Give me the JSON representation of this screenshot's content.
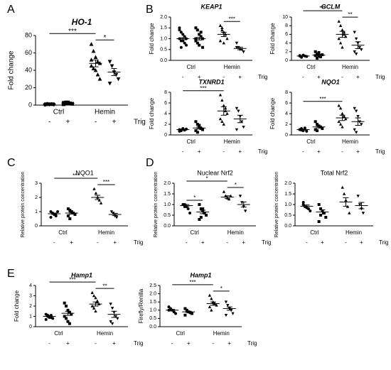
{
  "chart_data": [
    {
      "type": "dot",
      "panel": "A",
      "title": "HO-1",
      "italic": true,
      "ylabel": "Fold change",
      "groups": [
        "Ctrl",
        "Hemin"
      ],
      "categories": [
        "-",
        "+",
        "-",
        "+"
      ],
      "treatment": "Trig",
      "markers": [
        "circle",
        "square",
        "triangle",
        "triangle-down"
      ],
      "color": "#000000",
      "ylim": [
        0,
        80
      ],
      "yticks": [
        0,
        20,
        40,
        60,
        80
      ],
      "data": [
        {
          "mean": 1,
          "sem": 0.2,
          "points": [
            0.5,
            1,
            1,
            1.2,
            0.8,
            1,
            1.5,
            0.9,
            1.1,
            1
          ]
        },
        {
          "mean": 2,
          "sem": 0.3,
          "points": [
            1,
            2,
            3,
            2,
            1.5,
            2.5,
            3,
            1.8
          ]
        },
        {
          "mean": 48,
          "sem": 4,
          "points": [
            70,
            62,
            55,
            50,
            48,
            45,
            42,
            40,
            35,
            30,
            52
          ]
        },
        {
          "mean": 38,
          "sem": 4,
          "points": [
            50,
            45,
            38,
            35,
            30,
            25
          ]
        }
      ],
      "significance": [
        {
          "pair": [
            0,
            2
          ],
          "label": "***"
        },
        {
          "pair": [
            2,
            3
          ],
          "label": "*"
        }
      ]
    },
    {
      "type": "dot",
      "panel": "B",
      "title": "KEAP1",
      "italic": true,
      "ylabel": "Fold change",
      "groups": [
        "Ctrl",
        "Hemin"
      ],
      "categories": [
        "-",
        "+",
        "-",
        "+"
      ],
      "treatment": "Trig",
      "markers": [
        "circle",
        "square",
        "triangle",
        "triangle-down"
      ],
      "color": "#000000",
      "ylim": [
        0,
        2
      ],
      "yticks": [
        {
          "value": 0,
          "label": "0.0"
        },
        0.5,
        {
          "value": 1,
          "label": "1.0"
        },
        1.5,
        {
          "value": 2,
          "label": "2.0"
        }
      ],
      "data": [
        {
          "mean": 1.0,
          "sem": 0.05,
          "points": [
            1.5,
            1.3,
            1.2,
            1.1,
            1.0,
            1.0,
            0.9,
            0.9,
            0.8,
            0.7,
            1.4,
            0.6
          ]
        },
        {
          "mean": 1.0,
          "sem": 0.06,
          "points": [
            1.5,
            1.4,
            1.2,
            1.1,
            1.0,
            0.9,
            0.8,
            0.7,
            1.3,
            0.6,
            1.0
          ]
        },
        {
          "mean": 1.2,
          "sem": 0.1,
          "points": [
            1.6,
            1.5,
            1.3,
            1.2,
            1.0,
            0.9,
            1.4,
            0.8
          ]
        },
        {
          "mean": 0.55,
          "sem": 0.06,
          "points": [
            0.8,
            0.6,
            0.5,
            0.5,
            0.4,
            0.6
          ]
        }
      ],
      "significance": [
        {
          "pair": [
            2,
            3
          ],
          "label": "***"
        }
      ]
    },
    {
      "type": "dot",
      "title": "GCLM",
      "italic": true,
      "ylabel": "Fold change",
      "groups": [
        "Ctrl",
        "Hemin"
      ],
      "categories": [
        "-",
        "+",
        "-",
        "+"
      ],
      "treatment": "Trig",
      "markers": [
        "circle",
        "square",
        "triangle",
        "triangle-down"
      ],
      "color": "#000000",
      "ylim": [
        0,
        10
      ],
      "yticks": [
        0,
        2,
        4,
        6,
        8,
        10
      ],
      "data": [
        {
          "mean": 1,
          "sem": 0.1,
          "points": [
            1,
            0.8,
            1.2,
            1,
            0.9,
            1.1,
            0.7
          ]
        },
        {
          "mean": 1.2,
          "sem": 0.2,
          "points": [
            2,
            1.5,
            1,
            0.8,
            1.3,
            1.1,
            0.5,
            1.8
          ]
        },
        {
          "mean": 6,
          "sem": 0.7,
          "points": [
            9,
            8,
            7,
            6,
            5.5,
            5,
            4,
            3,
            6.5
          ]
        },
        {
          "mean": 3.5,
          "sem": 0.8,
          "points": [
            6.5,
            5,
            4,
            3,
            2.5,
            2,
            1.5
          ]
        }
      ],
      "significance": [
        {
          "pair": [
            0,
            2
          ],
          "label": "***"
        },
        {
          "pair": [
            2,
            3
          ],
          "label": "**"
        }
      ]
    },
    {
      "type": "dot",
      "title": "TXNRD1",
      "italic": true,
      "ylabel": "Fold change",
      "groups": [
        "Ctrl",
        "Hemin"
      ],
      "categories": [
        "-",
        "+",
        "-",
        "+"
      ],
      "treatment": "Trig",
      "markers": [
        "circle",
        "square",
        "triangle",
        "triangle-down"
      ],
      "color": "#000000",
      "ylim": [
        0,
        8
      ],
      "yticks": [
        0,
        2,
        4,
        6,
        8
      ],
      "data": [
        {
          "mean": 1,
          "sem": 0.1,
          "points": [
            1,
            0.8,
            1.2,
            0.9,
            1.1,
            0.7
          ]
        },
        {
          "mean": 1.3,
          "sem": 0.2,
          "points": [
            2.5,
            2,
            1.5,
            1.2,
            1,
            0.8,
            0.5,
            1.8
          ]
        },
        {
          "mean": 4.5,
          "sem": 0.8,
          "points": [
            7.5,
            6.5,
            5.5,
            5,
            4,
            3,
            2.5,
            2,
            4.5
          ]
        },
        {
          "mean": 3,
          "sem": 0.7,
          "points": [
            5,
            4.5,
            3.5,
            2.5,
            1.5,
            1
          ]
        }
      ],
      "significance": [
        {
          "pair": [
            0,
            2
          ],
          "label": "***"
        }
      ]
    },
    {
      "type": "dot",
      "title": "NQO1",
      "italic": true,
      "ylabel": "Fold change",
      "groups": [
        "Ctrl",
        "Hemin"
      ],
      "categories": [
        "-",
        "+",
        "-",
        "+"
      ],
      "treatment": "Trig",
      "markers": [
        "circle",
        "square",
        "triangle",
        "triangle-down"
      ],
      "color": "#000000",
      "ylim": [
        0,
        8
      ],
      "yticks": [
        0,
        2,
        4,
        6,
        8
      ],
      "data": [
        {
          "mean": 1,
          "sem": 0.1,
          "points": [
            1,
            1.2,
            0.8,
            1.3,
            0.7,
            1,
            0.9
          ]
        },
        {
          "mean": 1.5,
          "sem": 0.2,
          "points": [
            2.5,
            2,
            1.7,
            1.5,
            1.2,
            1,
            0.8
          ]
        },
        {
          "mean": 3.2,
          "sem": 0.5,
          "points": [
            5.5,
            5,
            4,
            3.5,
            3,
            2.5,
            2,
            1.5
          ]
        },
        {
          "mean": 2.5,
          "sem": 0.7,
          "points": [
            5,
            4.5,
            3.5,
            2.5,
            2,
            1,
            0.5
          ]
        }
      ],
      "significance": [
        {
          "pair": [
            0,
            2
          ],
          "label": "***"
        }
      ]
    },
    {
      "type": "dot",
      "panel": "C",
      "title": "NQO1",
      "italic": false,
      "ylabel": "Relative protein concentration",
      "groups": [
        "Ctrl",
        "Hemin"
      ],
      "categories": [
        "-",
        "+",
        "-",
        "+"
      ],
      "treatment": "Trig",
      "markers": [
        "circle",
        "square",
        "triangle",
        "triangle-down"
      ],
      "color": "#000000",
      "ylim": [
        0,
        3
      ],
      "yticks": [
        0,
        1,
        2,
        3
      ],
      "data": [
        {
          "mean": 0.85,
          "sem": 0.05,
          "points": [
            1.0,
            0.9,
            0.8,
            0.7,
            1.0,
            0.6,
            0.9,
            0.8
          ]
        },
        {
          "mean": 0.9,
          "sem": 0.07,
          "points": [
            1.2,
            1.1,
            1.0,
            0.9,
            0.8,
            0.7,
            0.5,
            1.0,
            0.9
          ]
        },
        {
          "mean": 2.0,
          "sem": 0.15,
          "points": [
            2.6,
            2.3,
            2.0,
            1.8,
            1.6
          ]
        },
        {
          "mean": 0.8,
          "sem": 0.08,
          "points": [
            1.0,
            0.9,
            0.7,
            0.6
          ]
        }
      ],
      "significance": [
        {
          "pair": [
            0,
            2
          ],
          "label": "***"
        },
        {
          "pair": [
            2,
            3
          ],
          "label": "***"
        }
      ]
    },
    {
      "type": "dot",
      "panel": "D",
      "title": "Nuclear Nrf2",
      "italic": false,
      "ylabel": "Relative protein concentration",
      "groups": [
        "Ctrl",
        "Hemin"
      ],
      "categories": [
        "-",
        "+",
        "-",
        "+"
      ],
      "treatment": "Trig",
      "markers": [
        "circle",
        "square",
        "triangle",
        "triangle-down"
      ],
      "color": "#000000",
      "ylim": [
        0,
        2
      ],
      "yticks": [
        {
          "value": 0,
          "label": "0.0"
        },
        0.5,
        {
          "value": 1,
          "label": "1.0"
        },
        1.5,
        {
          "value": 2,
          "label": "2.0"
        }
      ],
      "data": [
        {
          "mean": 0.95,
          "sem": 0.05,
          "points": [
            1.0,
            1.0,
            0.9,
            0.8,
            0.6,
            1.0,
            0.9
          ]
        },
        {
          "mean": 0.65,
          "sem": 0.08,
          "points": [
            1.0,
            0.8,
            0.7,
            0.6,
            0.5,
            0.3,
            0.4,
            0.8
          ]
        },
        {
          "mean": 1.35,
          "sem": 0.06,
          "points": [
            1.6,
            1.4,
            1.3,
            1.25,
            1.4
          ]
        },
        {
          "mean": 1.0,
          "sem": 0.12,
          "points": [
            1.4,
            1.1,
            0.9,
            0.7
          ]
        }
      ],
      "significance": [
        {
          "pair": [
            0,
            1
          ],
          "label": "*"
        },
        {
          "pair": [
            2,
            3
          ],
          "label": "*"
        },
        {
          "pair": [
            0,
            2
          ],
          "label": "*"
        }
      ]
    },
    {
      "type": "dot",
      "title": "Total Nrf2",
      "italic": false,
      "ylabel": "Relative protein concentration",
      "groups": [
        "Ctrl",
        "Hemin"
      ],
      "categories": [
        "-",
        "+",
        "-",
        "+"
      ],
      "treatment": "Trig",
      "markers": [
        "circle",
        "square",
        "triangle",
        "triangle-down"
      ],
      "color": "#000000",
      "ylim": [
        0,
        2
      ],
      "yticks": [
        {
          "value": 0,
          "label": "0.0"
        },
        0.5,
        {
          "value": 1,
          "label": "1.0"
        },
        1.5,
        {
          "value": 2,
          "label": "2.0"
        }
      ],
      "data": [
        {
          "mean": 0.92,
          "sem": 0.06,
          "points": [
            1.0,
            0.9,
            0.85,
            0.8,
            0.7,
            1.1
          ]
        },
        {
          "mean": 0.65,
          "sem": 0.1,
          "points": [
            1.0,
            0.8,
            0.7,
            0.6,
            0.4,
            0.2,
            0.5
          ]
        },
        {
          "mean": 1.12,
          "sem": 0.2,
          "points": [
            1.8,
            1.5,
            1.2,
            0.9,
            0.6
          ]
        },
        {
          "mean": 0.95,
          "sem": 0.15,
          "points": [
            1.4,
            1.0,
            0.8,
            0.6
          ]
        }
      ],
      "significance": []
    },
    {
      "type": "dot",
      "panel": "E",
      "title": "Hamp1",
      "italic": true,
      "ylabel": "Fold change",
      "groups": [
        "Ctrl",
        "Hemin"
      ],
      "categories": [
        "-",
        "+",
        "-",
        "+"
      ],
      "treatment": "Trig",
      "markers": [
        "circle",
        "square",
        "triangle",
        "triangle-down"
      ],
      "color": "#000000",
      "ylim": [
        0,
        4
      ],
      "yticks": [
        0,
        1,
        2,
        3,
        4
      ],
      "data": [
        {
          "mean": 1,
          "sem": 0.05,
          "points": [
            1.2,
            1.1,
            1,
            0.9,
            0.8,
            0.7,
            1,
            0.9,
            1.1
          ]
        },
        {
          "mean": 1.3,
          "sem": 0.2,
          "points": [
            2.3,
            2,
            1.6,
            1.4,
            1.2,
            1,
            0.8,
            0.5,
            0.3
          ]
        },
        {
          "mean": 2.2,
          "sem": 0.2,
          "points": [
            3.3,
            3,
            2.8,
            2.5,
            2.2,
            2,
            1.8,
            1.5,
            2.4
          ]
        },
        {
          "mean": 1.2,
          "sem": 0.3,
          "points": [
            2.2,
            1.8,
            1.4,
            1,
            0.8,
            0.5,
            0.3
          ]
        }
      ],
      "significance": [
        {
          "pair": [
            0,
            2
          ],
          "label": "***"
        },
        {
          "pair": [
            2,
            3
          ],
          "label": "**"
        }
      ]
    },
    {
      "type": "dot",
      "title": "Hamp1",
      "italic": true,
      "ylabel": "Firefly/Renilla",
      "groups": [
        "Ctrl",
        "Hemin"
      ],
      "categories": [
        "-",
        "+",
        "-",
        "+"
      ],
      "treatment": "Trig",
      "markers": [
        "circle",
        "square",
        "triangle",
        "triangle-down"
      ],
      "color": "#000000",
      "ylim": [
        0,
        2.5
      ],
      "yticks": [
        {
          "value": 0,
          "label": "0.0"
        },
        0.5,
        {
          "value": 1,
          "label": "1.0"
        },
        1.5,
        {
          "value": 2,
          "label": "2.0"
        },
        2.5
      ],
      "data": [
        {
          "mean": 1,
          "sem": 0.05,
          "points": [
            1.2,
            1.1,
            1,
            0.9,
            0.8,
            1
          ]
        },
        {
          "mean": 0.9,
          "sem": 0.04,
          "points": [
            1.1,
            1,
            0.9,
            0.85,
            0.8,
            0.7
          ]
        },
        {
          "mean": 1.4,
          "sem": 0.1,
          "points": [
            1.9,
            1.7,
            1.5,
            1.4,
            1.3,
            1.2,
            1.0
          ]
        },
        {
          "mean": 1.1,
          "sem": 0.1,
          "points": [
            1.5,
            1.3,
            1.1,
            1.0,
            0.8,
            0.7
          ]
        }
      ],
      "significance": [
        {
          "pair": [
            0,
            2
          ],
          "label": "***"
        },
        {
          "pair": [
            2,
            3
          ],
          "label": "*"
        }
      ]
    }
  ]
}
